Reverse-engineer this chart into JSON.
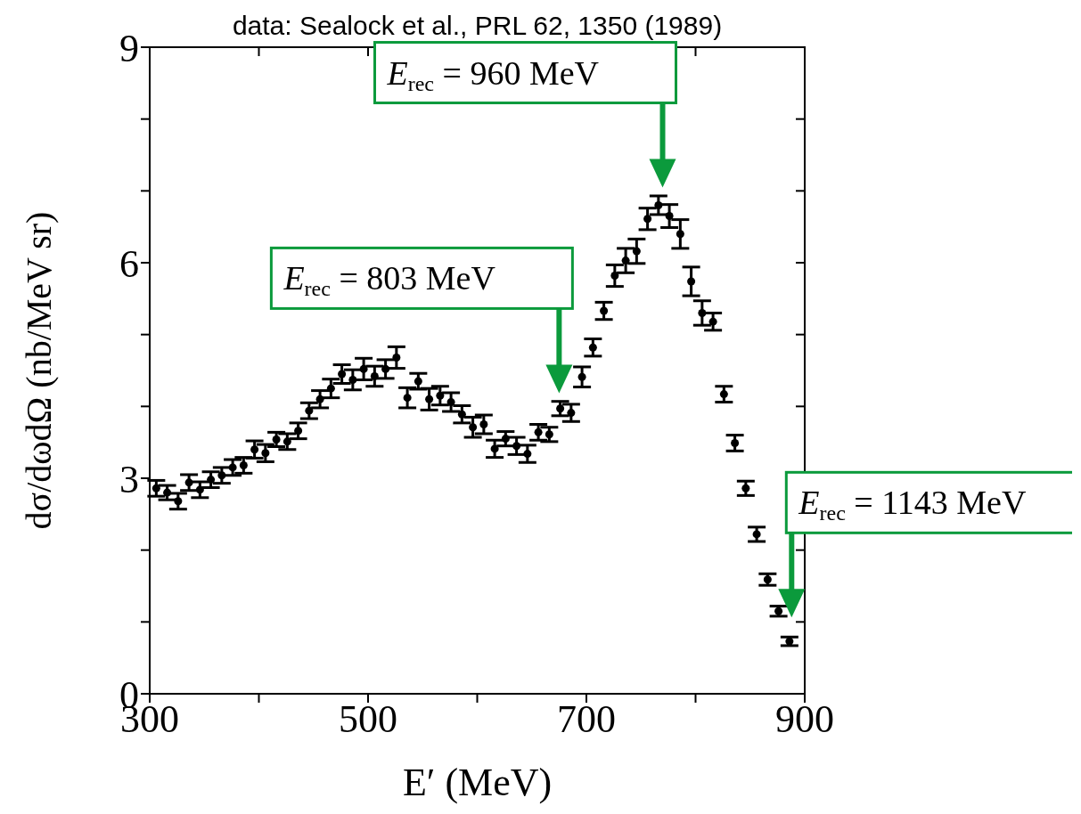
{
  "chart_data": {
    "type": "scatter",
    "title": "data: Sealock et al., PRL 62, 1350 (1989)",
    "xlabel": "E′ (MeV)",
    "ylabel": "dσ/dωdΩ   (nb/MeV sr)",
    "x": [
      306,
      316,
      326,
      336,
      346,
      356,
      366,
      376,
      386,
      396,
      406,
      416,
      426,
      436,
      446,
      456,
      466,
      476,
      486,
      496,
      506,
      516,
      526,
      536,
      546,
      556,
      566,
      576,
      586,
      596,
      606,
      616,
      626,
      636,
      646,
      656,
      666,
      676,
      686,
      696,
      706,
      716,
      726,
      736,
      746,
      756,
      766,
      776,
      786,
      796,
      806,
      816,
      826,
      836,
      846,
      856,
      866,
      876,
      886
    ],
    "series": [
      {
        "color": "#000000",
        "values": [
          2.86,
          2.8,
          2.68,
          2.94,
          2.84,
          2.98,
          3.04,
          3.15,
          3.18,
          3.4,
          3.35,
          3.54,
          3.51,
          3.66,
          3.94,
          4.1,
          4.25,
          4.45,
          4.37,
          4.52,
          4.42,
          4.52,
          4.68,
          4.12,
          4.35,
          4.1,
          4.15,
          4.06,
          3.89,
          3.71,
          3.75,
          3.41,
          3.55,
          3.45,
          3.34,
          3.64,
          3.61,
          3.97,
          3.91,
          4.41,
          4.82,
          5.33,
          5.82,
          6.03,
          6.16,
          6.61,
          6.8,
          6.65,
          6.4,
          5.74,
          5.3,
          5.18,
          4.17,
          3.49,
          2.86,
          2.22,
          1.59,
          1.15,
          0.73
        ],
        "errors": [
          0.11,
          0.1,
          0.11,
          0.11,
          0.11,
          0.11,
          0.11,
          0.11,
          0.11,
          0.12,
          0.12,
          0.1,
          0.11,
          0.11,
          0.11,
          0.12,
          0.13,
          0.13,
          0.14,
          0.15,
          0.14,
          0.13,
          0.15,
          0.14,
          0.11,
          0.15,
          0.13,
          0.13,
          0.12,
          0.14,
          0.13,
          0.12,
          0.1,
          0.12,
          0.12,
          0.11,
          0.1,
          0.1,
          0.12,
          0.14,
          0.12,
          0.12,
          0.15,
          0.17,
          0.17,
          0.15,
          0.13,
          0.16,
          0.2,
          0.2,
          0.17,
          0.12,
          0.11,
          0.11,
          0.1,
          0.1,
          0.08,
          0.07,
          0.06
        ]
      }
    ],
    "xlim": [
      300,
      900
    ],
    "xticks": [
      300,
      {
        "value": 400,
        "label": null
      },
      500,
      {
        "value": 600,
        "label": null
      },
      700,
      {
        "value": 800,
        "label": null
      },
      900
    ],
    "ylim": [
      0,
      9
    ],
    "yticks": [
      0,
      {
        "value": 1,
        "label": null
      },
      {
        "value": 2,
        "label": null
      },
      3,
      {
        "value": 4,
        "label": null
      },
      {
        "value": 5,
        "label": null
      },
      6,
      {
        "value": 7,
        "label": null
      },
      {
        "value": 8,
        "label": null
      },
      9
    ],
    "marker": "circle",
    "legend": false,
    "grid": false,
    "annotations": [
      "E$_{rec}$ = 803 MeV",
      "E$_{rec}$ = 960 MeV",
      "E$_{rec}$ = 1143 MeV"
    ]
  }
}
